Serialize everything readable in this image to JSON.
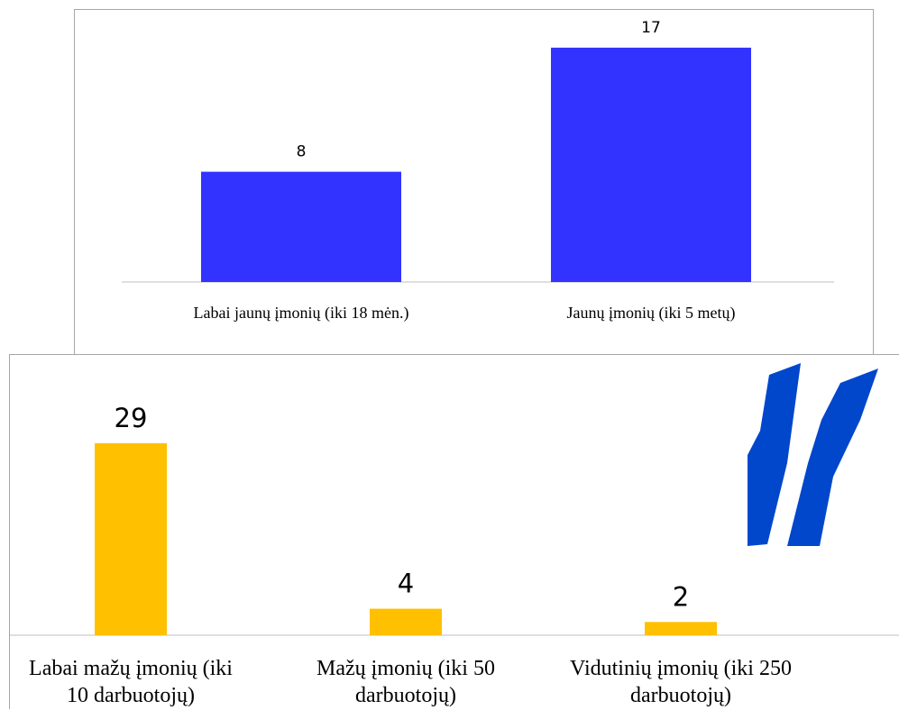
{
  "chart_data": [
    {
      "type": "bar",
      "categories": [
        "Labai jaunų įmonių (iki 18 mėn.)",
        "Jaunų įmonių (iki 5 metų)"
      ],
      "values": [
        8,
        17
      ],
      "title": "",
      "xlabel": "",
      "ylabel": "",
      "grid": false,
      "legend": "none",
      "color": "#3333ff"
    },
    {
      "type": "bar",
      "categories": [
        "Labai mažų įmonių (iki 10 darbuotojų)",
        "Mažų įmonių (iki 50 darbuotojų)",
        "Vidutinių įmonių (iki 250 darbuotojų)"
      ],
      "category_lines": [
        [
          "Labai mažų įmonių (iki",
          "10 darbuotojų)"
        ],
        [
          "Mažų įmonių (iki 50",
          "darbuotojų)"
        ],
        [
          "Vidutinių įmonių (iki 250",
          "darbuotojų)"
        ]
      ],
      "values": [
        29,
        4,
        2
      ],
      "title": "",
      "xlabel": "",
      "ylabel": "",
      "grid": false,
      "legend": "none",
      "color": "#ffc000"
    }
  ],
  "logo": {
    "icon": "v-logo-icon",
    "color": "#0047cc"
  }
}
